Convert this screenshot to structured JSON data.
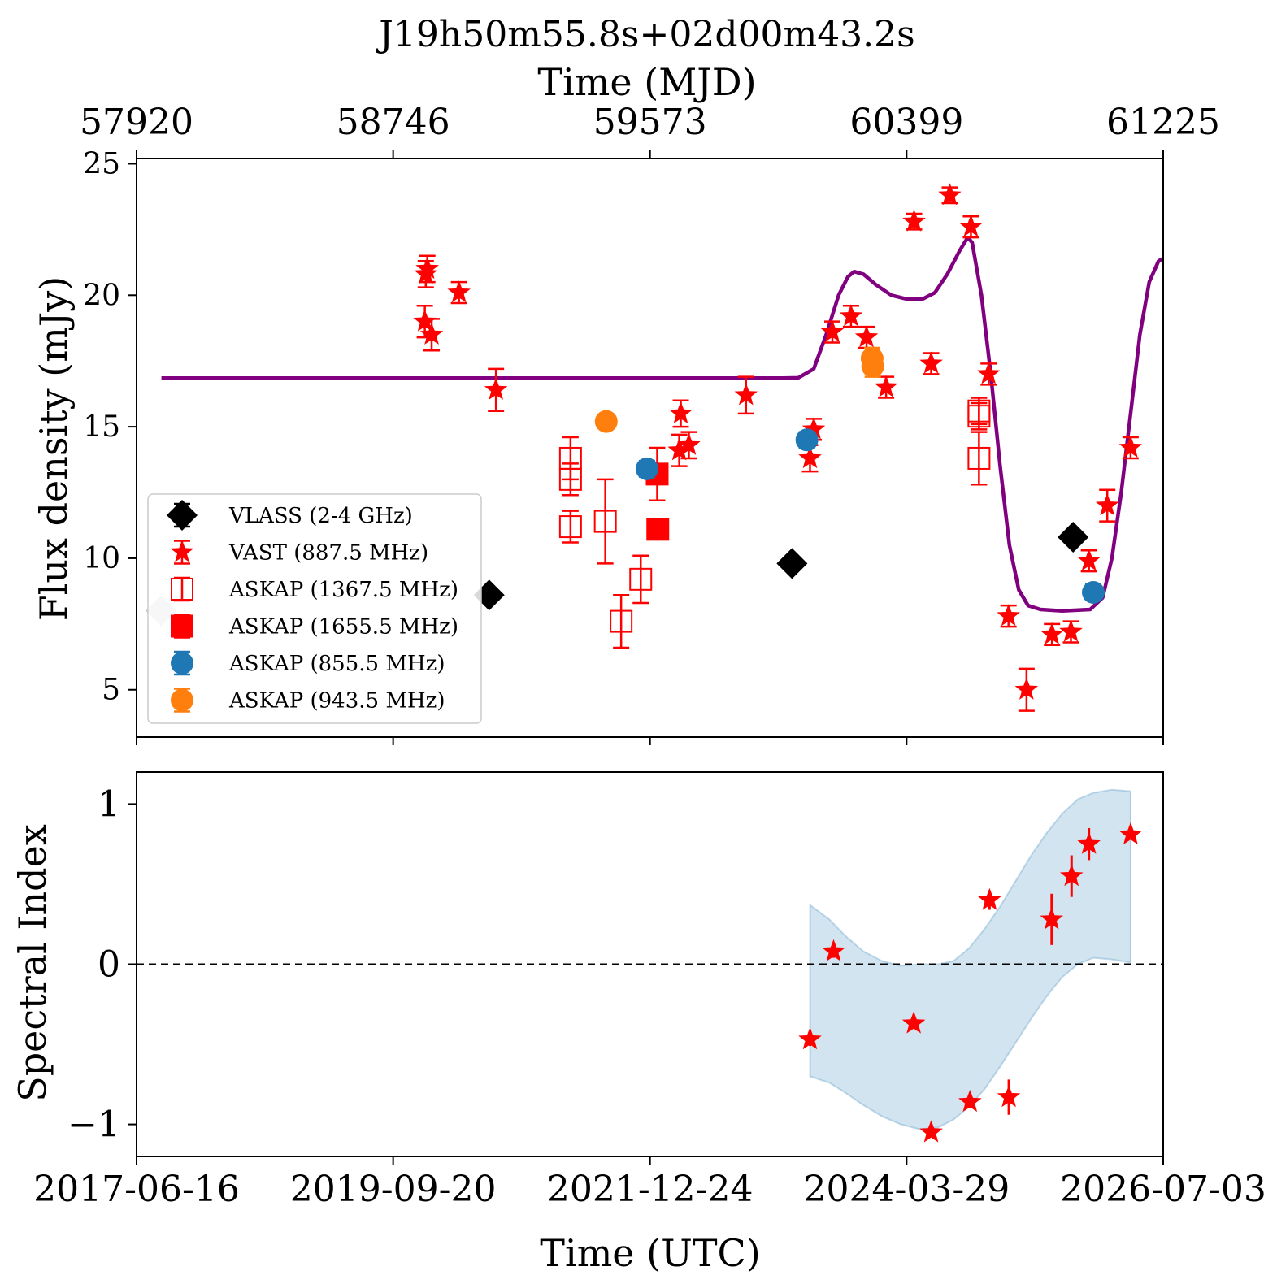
{
  "chart_data": [
    {
      "type": "scatter",
      "title": "J19h50m55.8s+02d00m43.2s",
      "top_axis": {
        "label": "Time (MJD)",
        "ticks": [
          "57920",
          "58746",
          "59573",
          "60399",
          "61225"
        ]
      },
      "xlim_mjd": [
        57920,
        61225
      ],
      "ylabel": "Flux density (mJy)",
      "ylim": [
        3.2,
        25.2
      ],
      "yticks": [
        5,
        10,
        15,
        20,
        25
      ],
      "legend": {
        "placement": "lower-left",
        "entries": [
          "VLASS (2-4 GHz)",
          "VAST (887.5 MHz)",
          "ASKAP (1367.5 MHz)",
          "ASKAP (1655.5 MHz)",
          "ASKAP (855.5 MHz)",
          "ASKAP (943.5 MHz)"
        ]
      },
      "series": [
        {
          "name": "VLASS (2-4 GHz)",
          "marker": "diamond",
          "color": "#000000",
          "points": [
            [
              57999,
              8.0
            ],
            [
              59055,
              8.6
            ],
            [
              60030,
              9.8
            ],
            [
              60935,
              10.8
            ]
          ],
          "faded_points": [
            0
          ]
        },
        {
          "name": "VAST (887.5 MHz)",
          "marker": "star",
          "color": "#ff0000",
          "points": [
            [
              58851,
              20.8,
              0.5
            ],
            [
              58856,
              21.0,
              0.5
            ],
            [
              58848,
              19.0,
              0.6
            ],
            [
              58870,
              18.5,
              0.6
            ],
            [
              58958,
              20.1,
              0.4
            ],
            [
              59077,
              16.4,
              0.8
            ],
            [
              59672,
              15.5,
              0.5
            ],
            [
              59667,
              14.1,
              0.6
            ],
            [
              59698,
              14.3,
              0.5
            ],
            [
              59882,
              16.2,
              0.7
            ],
            [
              60088,
              13.8,
              0.5
            ],
            [
              60100,
              14.9,
              0.4
            ],
            [
              60160,
              18.6,
              0.4
            ],
            [
              60220,
              19.2,
              0.4
            ],
            [
              60270,
              18.4,
              0.4
            ],
            [
              60333,
              16.5,
              0.4
            ],
            [
              60423,
              22.8,
              0.3
            ],
            [
              60478,
              17.4,
              0.4
            ],
            [
              60538,
              23.8,
              0.3
            ],
            [
              60606,
              22.6,
              0.4
            ],
            [
              60663,
              17.0,
              0.4
            ],
            [
              60727,
              7.8,
              0.4
            ],
            [
              60785,
              5.0,
              0.8
            ],
            [
              60867,
              7.1,
              0.4
            ],
            [
              60928,
              7.2,
              0.4
            ],
            [
              60986,
              9.9,
              0.4
            ],
            [
              61120,
              14.2,
              0.4
            ],
            [
              61045,
              12.0,
              0.6
            ]
          ]
        },
        {
          "name": "ASKAP (1367.5 MHz)",
          "marker": "open-square",
          "color": "#ff0000",
          "points": [
            [
              59317,
              13.0,
              0.6
            ],
            [
              59317,
              13.8,
              0.8
            ],
            [
              59317,
              11.2,
              0.6
            ],
            [
              59429,
              11.4,
              1.6
            ],
            [
              59480,
              7.6,
              1.0
            ],
            [
              59543,
              9.2,
              0.9
            ],
            [
              60632,
              13.8,
              1.0
            ],
            [
              60632,
              15.4,
              0.5
            ],
            [
              60632,
              15.6,
              0.5
            ]
          ]
        },
        {
          "name": "ASKAP (1655.5 MHz)",
          "marker": "filled-square",
          "color": "#ff0000",
          "points": [
            [
              59596,
              13.2,
              1.0
            ],
            [
              59598,
              11.1,
              0.3
            ]
          ]
        },
        {
          "name": "ASKAP (855.5 MHz)",
          "marker": "circle",
          "color": "#1f77b4",
          "points": [
            [
              59563,
              13.4,
              0.3
            ],
            [
              60078,
              14.5,
              0.3
            ],
            [
              61000,
              8.7,
              0.3
            ]
          ]
        },
        {
          "name": "ASKAP (943.5 MHz)",
          "marker": "circle",
          "color": "#ff7f0e",
          "points": [
            [
              59432,
              15.2,
              0.2
            ],
            [
              60288,
              17.6,
              0.4
            ],
            [
              60290,
              17.3,
              0.4
            ]
          ]
        }
      ],
      "model_curve": {
        "color": "#800080",
        "points": [
          [
            58000,
            16.85
          ],
          [
            59000,
            16.85
          ],
          [
            60000,
            16.85
          ],
          [
            60050,
            16.86
          ],
          [
            60100,
            17.2
          ],
          [
            60140,
            18.5
          ],
          [
            60180,
            20.0
          ],
          [
            60210,
            20.7
          ],
          [
            60230,
            20.9
          ],
          [
            60260,
            20.8
          ],
          [
            60300,
            20.4
          ],
          [
            60350,
            20.0
          ],
          [
            60400,
            19.85
          ],
          [
            60450,
            19.85
          ],
          [
            60490,
            20.1
          ],
          [
            60530,
            20.8
          ],
          [
            60570,
            21.7
          ],
          [
            60596,
            22.2
          ],
          [
            60610,
            22.0
          ],
          [
            60640,
            20.0
          ],
          [
            60670,
            17.0
          ],
          [
            60700,
            13.5
          ],
          [
            60730,
            10.5
          ],
          [
            60760,
            8.8
          ],
          [
            60790,
            8.2
          ],
          [
            60830,
            8.05
          ],
          [
            60900,
            8.0
          ],
          [
            60990,
            8.05
          ],
          [
            61030,
            8.5
          ],
          [
            61060,
            10.0
          ],
          [
            61090,
            12.5
          ],
          [
            61120,
            15.5
          ],
          [
            61150,
            18.5
          ],
          [
            61180,
            20.5
          ],
          [
            61210,
            21.3
          ],
          [
            61225,
            21.4
          ]
        ]
      }
    },
    {
      "type": "scatter",
      "xlabel": "Time (UTC)",
      "xticks": [
        "2017-06-16",
        "2019-09-20",
        "2021-12-24",
        "2024-03-29",
        "2026-07-03"
      ],
      "xlim_mjd": [
        57920,
        61225
      ],
      "ylabel": "Spectral Index",
      "ylim": [
        -1.2,
        1.2
      ],
      "yticks": [
        "−1",
        "0",
        "1"
      ],
      "reference_line": {
        "y": 0,
        "style": "dashed",
        "color": "#000000"
      },
      "series": [
        {
          "name": "",
          "marker": "star",
          "color": "#ff0000",
          "points": [
            [
              60088,
              -0.47,
              0.04
            ],
            [
              60164,
              0.08,
              0.04
            ],
            [
              60422,
              -0.37,
              0.03
            ],
            [
              60478,
              -1.05,
              0.03
            ],
            [
              60603,
              -0.86,
              0.04
            ],
            [
              60666,
              0.4,
              0.06
            ],
            [
              60728,
              -0.83,
              0.11
            ],
            [
              60866,
              0.28,
              0.16
            ],
            [
              60930,
              0.55,
              0.13
            ],
            [
              60986,
              0.75,
              0.1
            ],
            [
              61120,
              0.81,
              0.03
            ]
          ]
        }
      ],
      "band": {
        "color": "#1f77b4",
        "upper": [
          [
            60088,
            0.37
          ],
          [
            60150,
            0.28
          ],
          [
            60200,
            0.18
          ],
          [
            60260,
            0.08
          ],
          [
            60320,
            0.02
          ],
          [
            60380,
            -0.01
          ],
          [
            60440,
            0.0
          ],
          [
            60500,
            0.0
          ],
          [
            60550,
            0.02
          ],
          [
            60600,
            0.1
          ],
          [
            60650,
            0.22
          ],
          [
            60700,
            0.36
          ],
          [
            60750,
            0.52
          ],
          [
            60800,
            0.68
          ],
          [
            60850,
            0.82
          ],
          [
            60900,
            0.94
          ],
          [
            60950,
            1.03
          ],
          [
            61000,
            1.07
          ],
          [
            61060,
            1.09
          ],
          [
            61120,
            1.08
          ]
        ],
        "lower": [
          [
            60088,
            -0.7
          ],
          [
            60150,
            -0.74
          ],
          [
            60200,
            -0.8
          ],
          [
            60260,
            -0.88
          ],
          [
            60320,
            -0.95
          ],
          [
            60380,
            -1.0
          ],
          [
            60440,
            -1.03
          ],
          [
            60500,
            -1.02
          ],
          [
            60550,
            -0.97
          ],
          [
            60600,
            -0.89
          ],
          [
            60650,
            -0.78
          ],
          [
            60700,
            -0.64
          ],
          [
            60750,
            -0.49
          ],
          [
            60800,
            -0.34
          ],
          [
            60850,
            -0.2
          ],
          [
            60900,
            -0.08
          ],
          [
            60950,
            0.0
          ],
          [
            61000,
            0.04
          ],
          [
            61060,
            0.03
          ],
          [
            61120,
            0.01
          ]
        ]
      }
    }
  ]
}
